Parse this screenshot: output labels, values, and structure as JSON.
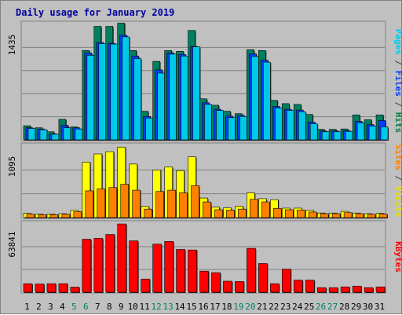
{
  "chart_data": {
    "title": "Daily usage for January 2019",
    "type": "bar",
    "days": [
      "1",
      "2",
      "3",
      "4",
      "5",
      "6",
      "7",
      "8",
      "9",
      "10",
      "11",
      "12",
      "13",
      "14",
      "15",
      "16",
      "17",
      "18",
      "19",
      "20",
      "21",
      "22",
      "23",
      "24",
      "25",
      "26",
      "27",
      "28",
      "29",
      "30",
      "31"
    ],
    "weekend_days": [
      "5",
      "6",
      "12",
      "13",
      "19",
      "20",
      "26",
      "27"
    ],
    "panels": [
      {
        "id": "hits",
        "ymax": 1435,
        "max_label": "1435",
        "side_labels": [
          {
            "text": "Pages",
            "color": "#00c8e8"
          },
          {
            "text": " / ",
            "color": "#404040"
          },
          {
            "text": "Files",
            "color": "#0040ff"
          },
          {
            "text": " / ",
            "color": "#404040"
          },
          {
            "text": "Hits",
            "color": "#008040"
          }
        ],
        "series": [
          {
            "name": "Hits",
            "color": "#008060",
            "values": [
              175,
              150,
              100,
              255,
              160,
              1110,
              1410,
              1410,
              1450,
              1110,
              355,
              975,
              1110,
              1100,
              1360,
              510,
              430,
              355,
              325,
              1120,
              1110,
              490,
              450,
              440,
              315,
              130,
              130,
              135,
              310,
              250,
              310
            ]
          },
          {
            "name": "Files",
            "color": "#0040ff",
            "values": [
              150,
              135,
              75,
              180,
              150,
              1080,
              1210,
              1200,
              1300,
              1040,
              290,
              870,
              1080,
              1060,
              1160,
              460,
              380,
              295,
              305,
              1070,
              990,
              415,
              380,
              370,
              220,
              110,
              110,
              115,
              230,
              190,
              240
            ]
          },
          {
            "name": "Pages",
            "color": "#00c8e8",
            "values": [
              140,
              125,
              70,
              150,
              135,
              1050,
              1195,
              1190,
              1280,
              1010,
              270,
              830,
              1065,
              1040,
              1155,
              440,
              365,
              275,
              290,
              1035,
              965,
              395,
              365,
              350,
              200,
              100,
              100,
              105,
              210,
              170,
              160
            ]
          }
        ]
      },
      {
        "id": "visits",
        "ymax": 1095,
        "max_label": "1095",
        "side_labels": [
          {
            "text": "Sites",
            "color": "#ff8000"
          },
          {
            "text": " / ",
            "color": "#404040"
          },
          {
            "text": "Visits",
            "color": "#e0e000"
          }
        ],
        "series": [
          {
            "name": "Visits",
            "color": "#ffff00",
            "values": [
              65,
              55,
              55,
              60,
              110,
              850,
              975,
              1010,
              1080,
              820,
              170,
              730,
              775,
              720,
              930,
              300,
              160,
              150,
              175,
              380,
              290,
              275,
              145,
              145,
              110,
              70,
              70,
              95,
              70,
              60,
              65
            ]
          },
          {
            "name": "Sites",
            "color": "#ff8000",
            "values": [
              50,
              45,
              45,
              50,
              90,
              410,
              440,
              460,
              510,
              420,
              130,
              400,
              420,
              380,
              490,
              240,
              120,
              115,
              130,
              280,
              240,
              140,
              120,
              115,
              85,
              60,
              60,
              75,
              60,
              50,
              55
            ]
          }
        ]
      },
      {
        "id": "kbytes",
        "ymax": 63841,
        "max_label": "63841",
        "side_labels": [
          {
            "text": "KBytes",
            "color": "#ff0000"
          }
        ],
        "series": [
          {
            "name": "KBytes",
            "color": "#ff0000",
            "values": [
              8000,
              7700,
              8000,
              8000,
              4800,
              49500,
              50300,
              53900,
              63800,
              48000,
              12300,
              44900,
              47400,
              40000,
              39500,
              19700,
              18300,
              10300,
              10000,
              41000,
              26800,
              8000,
              21600,
              11300,
              11300,
              4300,
              4300,
              5000,
              5700,
              4300,
              5000
            ]
          }
        ]
      }
    ]
  }
}
